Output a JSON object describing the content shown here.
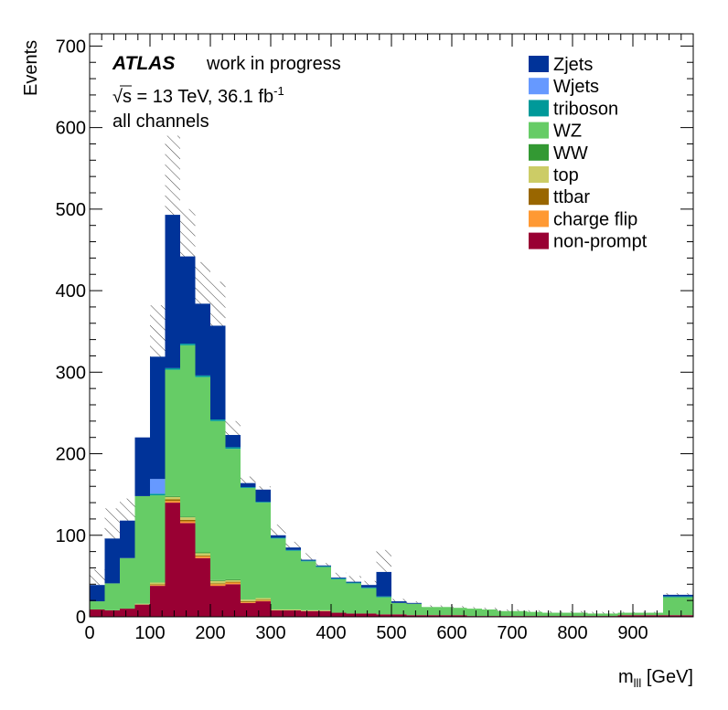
{
  "chart_data": {
    "type": "bar",
    "stacked": true,
    "histogram": true,
    "xlabel": "m_lll [GeV]",
    "xlabel_main": "m",
    "xlabel_sub": "lll",
    "xlabel_unit": " [GeV]",
    "ylabel": "Events",
    "xlim": [
      0,
      1000
    ],
    "ylim": [
      0,
      715
    ],
    "x_ticks": [
      0,
      100,
      200,
      300,
      400,
      500,
      600,
      700,
      800,
      900
    ],
    "y_ticks": [
      0,
      100,
      200,
      300,
      400,
      500,
      600,
      700
    ],
    "bin_width": 25,
    "bin_edges_start": 0,
    "legend_position": "top-right",
    "annotations": {
      "experiment": "ATLAS",
      "status": "work in progress",
      "energy_lumi": "√s = 13 TeV, 36.1 fb",
      "energy_lumi_sup": "-1",
      "channel": "all channels"
    },
    "uncertainty_band": "hatched",
    "series": [
      {
        "name": "non-prompt",
        "color": "#990033",
        "values": [
          9,
          8,
          10,
          15,
          38,
          140,
          115,
          72,
          38,
          40,
          17,
          19,
          8,
          8,
          7,
          7,
          5,
          4,
          4,
          3,
          3,
          2,
          2,
          2,
          2,
          1,
          1,
          1,
          1,
          1,
          1,
          1,
          1,
          1,
          1,
          2,
          2,
          2,
          2,
          2
        ]
      },
      {
        "name": "charge flip",
        "color": "#ff9933",
        "values": [
          0,
          0,
          0,
          0,
          1,
          2,
          2,
          2,
          2,
          2,
          1,
          1,
          0,
          0,
          0,
          0,
          0,
          0,
          0,
          0,
          0,
          0,
          0,
          0,
          0,
          0,
          0,
          0,
          0,
          0,
          0,
          0,
          0,
          0,
          0,
          0,
          0,
          0,
          0,
          0
        ]
      },
      {
        "name": "ttbar",
        "color": "#996600",
        "values": [
          0,
          0,
          0,
          0,
          1,
          2,
          2,
          1,
          1,
          1,
          1,
          1,
          0,
          0,
          0,
          0,
          0,
          0,
          0,
          0,
          0,
          0,
          0,
          0,
          0,
          0,
          0,
          0,
          0,
          0,
          0,
          0,
          0,
          0,
          0,
          0,
          0,
          0,
          0,
          0
        ]
      },
      {
        "name": "top",
        "color": "#cccc66",
        "values": [
          0,
          0,
          0,
          1,
          2,
          3,
          3,
          3,
          3,
          2,
          2,
          2,
          1,
          1,
          1,
          1,
          0,
          0,
          0,
          0,
          0,
          0,
          0,
          0,
          0,
          0,
          0,
          0,
          0,
          0,
          0,
          0,
          0,
          0,
          0,
          0,
          0,
          0,
          0,
          0
        ]
      },
      {
        "name": "WW",
        "color": "#339933",
        "values": [
          0,
          0,
          0,
          0,
          0,
          1,
          1,
          1,
          1,
          1,
          0,
          0,
          0,
          0,
          0,
          0,
          0,
          0,
          0,
          0,
          0,
          0,
          0,
          0,
          0,
          0,
          0,
          0,
          0,
          0,
          0,
          0,
          0,
          0,
          0,
          0,
          0,
          0,
          0,
          0
        ]
      },
      {
        "name": "WZ",
        "color": "#66cc66",
        "values": [
          10,
          33,
          62,
          132,
          107,
          155,
          210,
          215,
          195,
          160,
          137,
          117,
          87,
          72,
          60,
          53,
          41,
          37,
          31,
          21,
          14,
          14,
          10,
          10,
          9,
          9,
          8,
          6,
          6,
          5,
          4,
          4,
          4,
          3,
          3,
          3,
          3,
          3,
          22,
          22
        ]
      },
      {
        "name": "triboson",
        "color": "#009999",
        "values": [
          0,
          0,
          0,
          0,
          2,
          2,
          2,
          2,
          2,
          2,
          1,
          1,
          1,
          1,
          1,
          1,
          1,
          1,
          1,
          1,
          0,
          0,
          0,
          0,
          0,
          0,
          0,
          0,
          0,
          0,
          0,
          0,
          0,
          0,
          0,
          0,
          0,
          0,
          1,
          1
        ]
      },
      {
        "name": "Wjets",
        "color": "#6699ff",
        "values": [
          0,
          0,
          0,
          0,
          18,
          0,
          0,
          0,
          0,
          0,
          0,
          0,
          0,
          0,
          0,
          0,
          0,
          0,
          0,
          0,
          0,
          0,
          0,
          0,
          0,
          0,
          0,
          0,
          0,
          0,
          0,
          0,
          0,
          0,
          0,
          0,
          0,
          0,
          0,
          0
        ]
      },
      {
        "name": "Zjets",
        "color": "#003399",
        "values": [
          20,
          55,
          46,
          72,
          150,
          188,
          107,
          88,
          115,
          15,
          5,
          15,
          3,
          3,
          1,
          1,
          1,
          1,
          3,
          30,
          2,
          1,
          0,
          0,
          0,
          0,
          0,
          0,
          0,
          0,
          0,
          0,
          0,
          0,
          0,
          0,
          0,
          0,
          2,
          2
        ]
      }
    ],
    "uncertainty_up": [
      58,
      133,
      145,
      0,
      382,
      590,
      500,
      435,
      411,
      240,
      172,
      160,
      113,
      92,
      78,
      66,
      54,
      50,
      44,
      82,
      22,
      19,
      14,
      14,
      13,
      12,
      11,
      9,
      9,
      8,
      7,
      7,
      7,
      6,
      6,
      6,
      6,
      6,
      29,
      29
    ]
  }
}
